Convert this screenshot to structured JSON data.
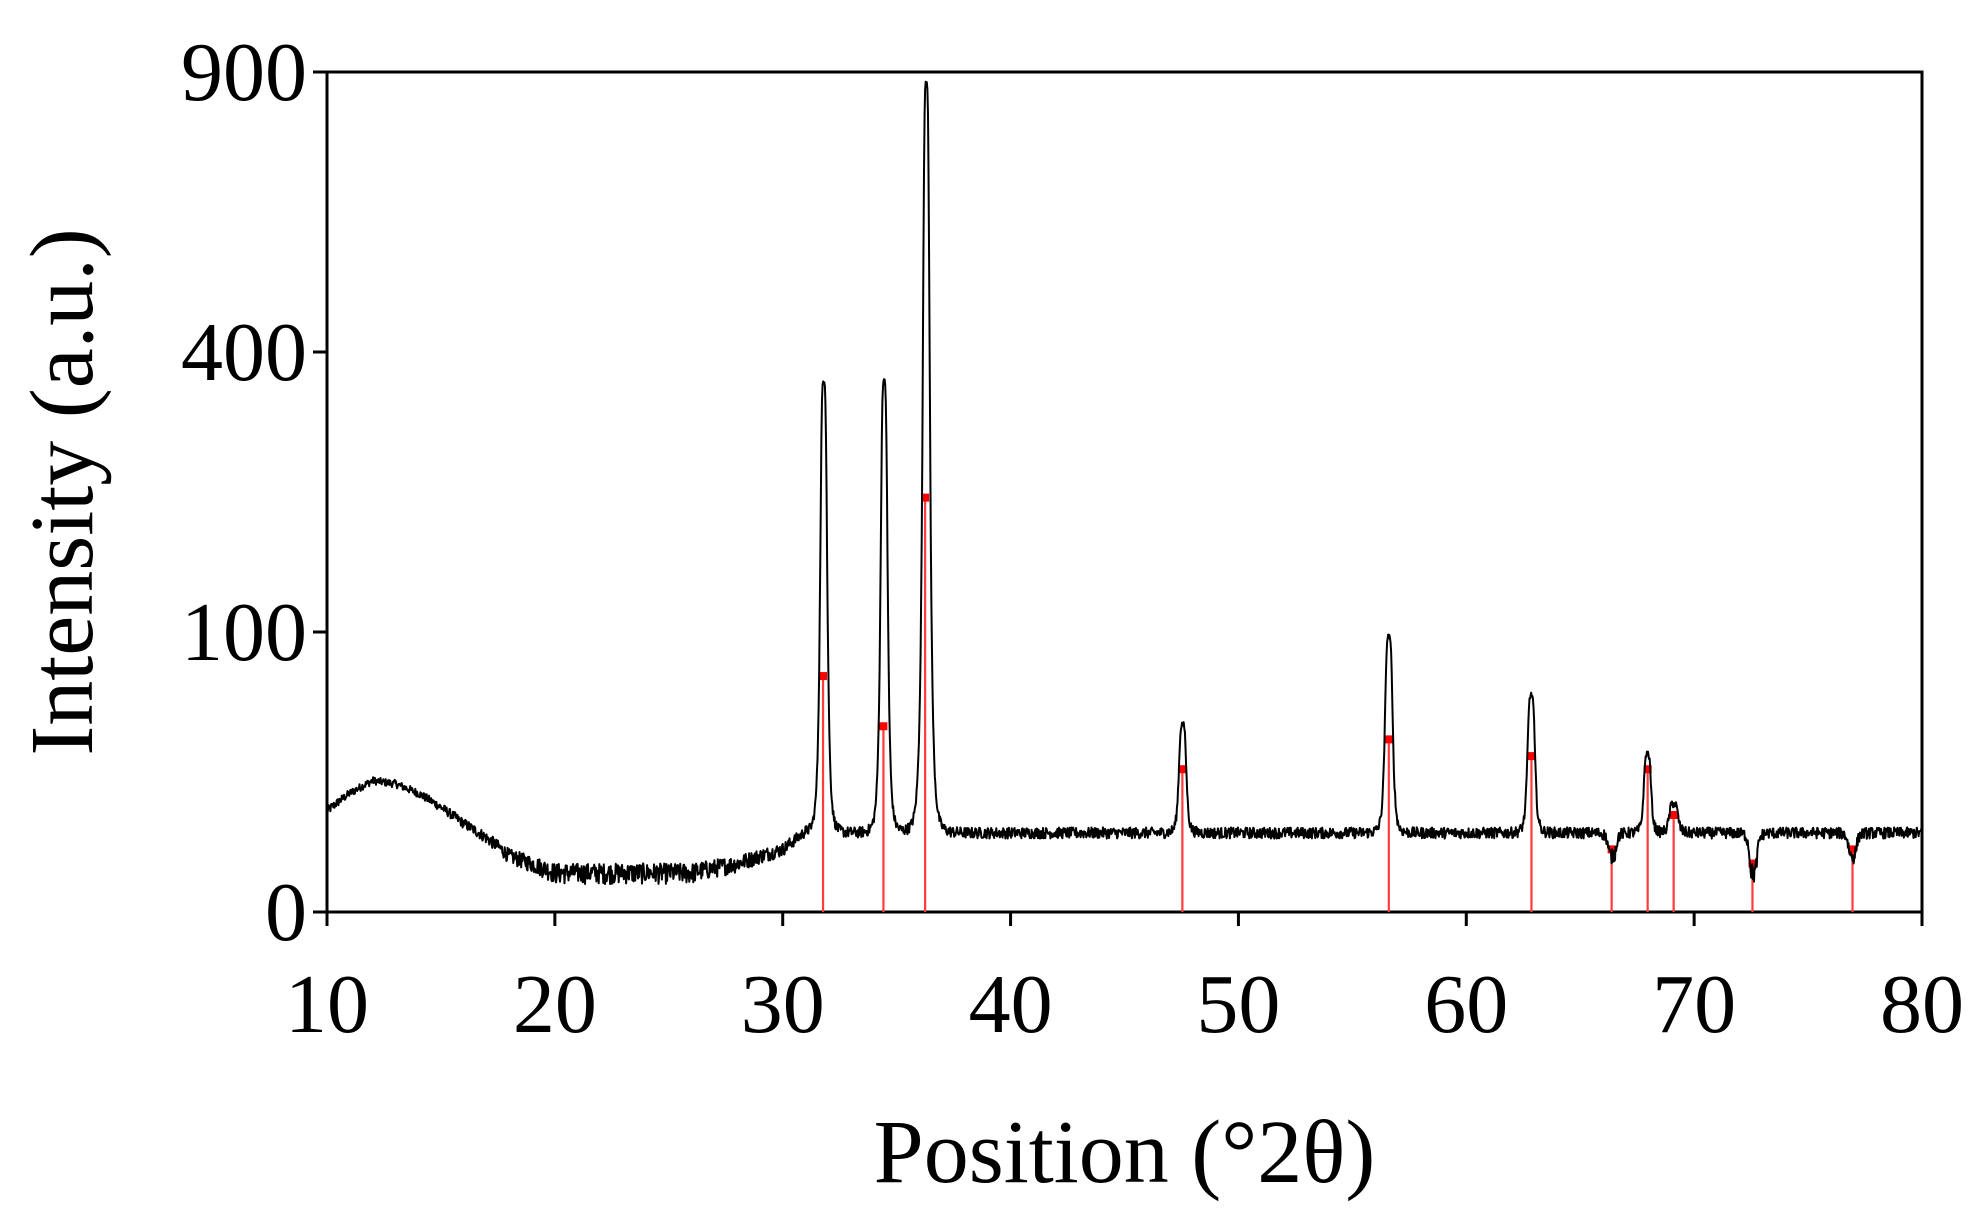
{
  "chart_data": {
    "type": "line",
    "xlabel": "Position (°2θ)",
    "ylabel": "Intensity (a.u.)",
    "xlim": [
      10,
      80
    ],
    "y_scale": "sqrt",
    "ylim": [
      0,
      900
    ],
    "x_ticks": [
      10,
      20,
      30,
      40,
      50,
      60,
      70,
      80
    ],
    "y_ticks": [
      0,
      100,
      400,
      900
    ],
    "grid": false,
    "legend": "none",
    "colors": {
      "pattern": "#000000",
      "reference": "#ff3b3b",
      "reference_marker": "#ff0000"
    },
    "series": [
      {
        "role": "measured_pattern",
        "background": {
          "x": [
            10,
            11,
            12,
            13,
            14,
            15,
            16,
            17,
            18,
            19,
            20,
            22,
            24,
            26,
            28,
            29,
            30,
            31
          ],
          "y": [
            13,
            18,
            22,
            21,
            18,
            14,
            10,
            7,
            4,
            3,
            2,
            2,
            2,
            2,
            3,
            4,
            5,
            8
          ]
        },
        "peaks": [
          {
            "x": 31.8,
            "y": 360
          },
          {
            "x": 34.45,
            "y": 360
          },
          {
            "x": 36.3,
            "y": 880
          },
          {
            "x": 47.55,
            "y": 45
          },
          {
            "x": 56.6,
            "y": 97
          },
          {
            "x": 62.85,
            "y": 60
          },
          {
            "x": 66.4,
            "y": 4
          },
          {
            "x": 67.95,
            "y": 32
          },
          {
            "x": 69.1,
            "y": 15
          },
          {
            "x": 72.6,
            "y": 2
          },
          {
            "x": 76.95,
            "y": 4
          }
        ]
      },
      {
        "role": "reference_lines",
        "x": [
          31.77,
          34.42,
          36.25,
          47.54,
          56.6,
          62.86,
          66.38,
          67.96,
          69.1,
          72.56,
          76.95
        ],
        "y": [
          71,
          44,
          219,
          26,
          38,
          31,
          5,
          26,
          12,
          3,
          5
        ]
      }
    ]
  }
}
